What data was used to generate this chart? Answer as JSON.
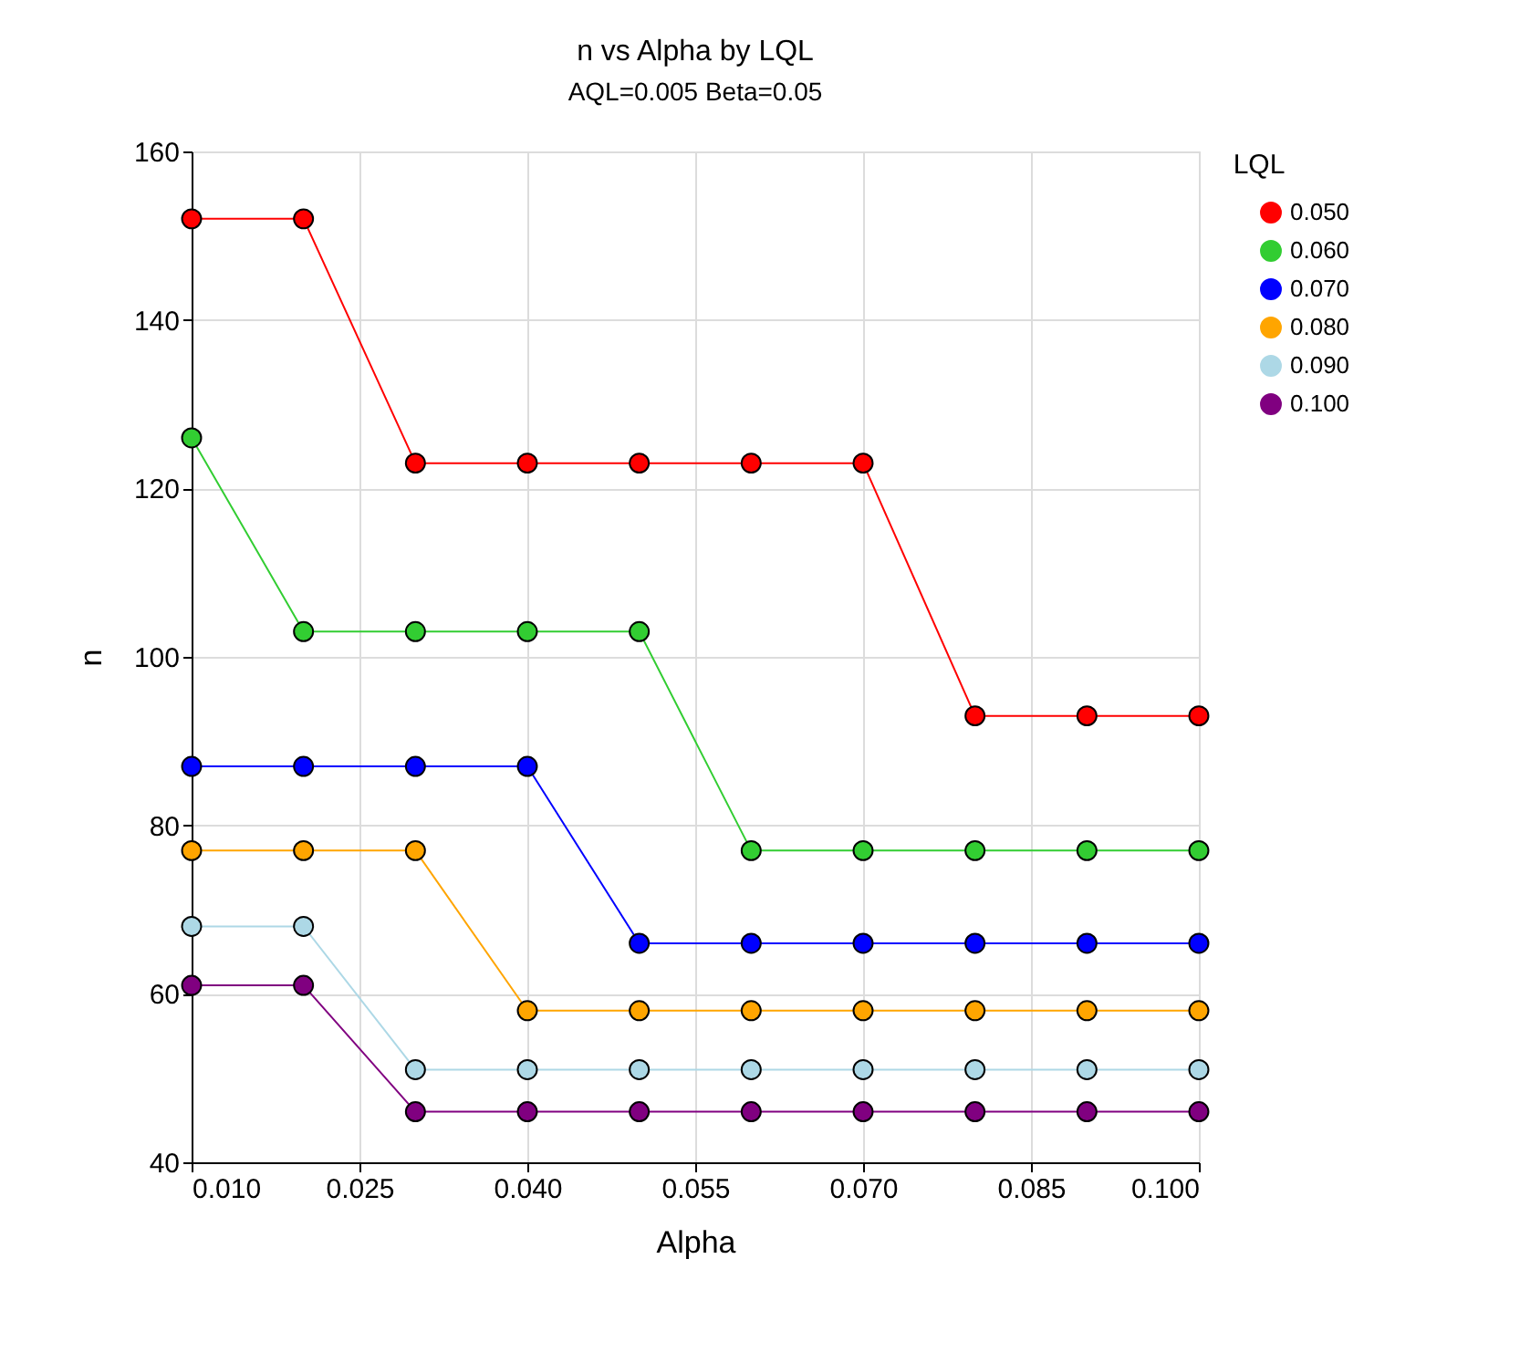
{
  "chart_data": {
    "type": "line",
    "title": "n vs Alpha by LQL",
    "subtitle": "AQL=0.005 Beta=0.05",
    "xlabel": "Alpha",
    "ylabel": "n",
    "legend_title": "LQL",
    "x": [
      0.01,
      0.02,
      0.03,
      0.04,
      0.05,
      0.06,
      0.07,
      0.08,
      0.09,
      0.1
    ],
    "series": [
      {
        "name": "0.050",
        "color": "#ff0000",
        "values": [
          152,
          152,
          123,
          123,
          123,
          123,
          123,
          93,
          93,
          93
        ]
      },
      {
        "name": "0.060",
        "color": "#32cd32",
        "values": [
          126,
          103,
          103,
          103,
          103,
          77,
          77,
          77,
          77,
          77
        ]
      },
      {
        "name": "0.070",
        "color": "#0000ff",
        "values": [
          87,
          87,
          87,
          87,
          66,
          66,
          66,
          66,
          66,
          66
        ]
      },
      {
        "name": "0.080",
        "color": "#ffa500",
        "values": [
          77,
          77,
          77,
          58,
          58,
          58,
          58,
          58,
          58,
          58
        ]
      },
      {
        "name": "0.090",
        "color": "#add8e6",
        "values": [
          68,
          68,
          51,
          51,
          51,
          51,
          51,
          51,
          51,
          51
        ]
      },
      {
        "name": "0.100",
        "color": "#800080",
        "values": [
          61,
          61,
          46,
          46,
          46,
          46,
          46,
          46,
          46,
          46
        ]
      }
    ],
    "xlim": [
      0.01,
      0.1
    ],
    "xticks": [
      {
        "value": 0.01,
        "label": "0.010"
      },
      {
        "value": 0.025,
        "label": "0.025"
      },
      {
        "value": 0.04,
        "label": "0.040"
      },
      {
        "value": 0.055,
        "label": "0.055"
      },
      {
        "value": 0.07,
        "label": "0.070"
      },
      {
        "value": 0.085,
        "label": "0.085"
      },
      {
        "value": 0.1,
        "label": "0.100"
      }
    ],
    "ylim": [
      40,
      160
    ],
    "yticks": [
      40,
      60,
      80,
      100,
      120,
      140,
      160
    ],
    "grid": true,
    "legend": "right",
    "marker": "circle",
    "line_style": "solid"
  }
}
